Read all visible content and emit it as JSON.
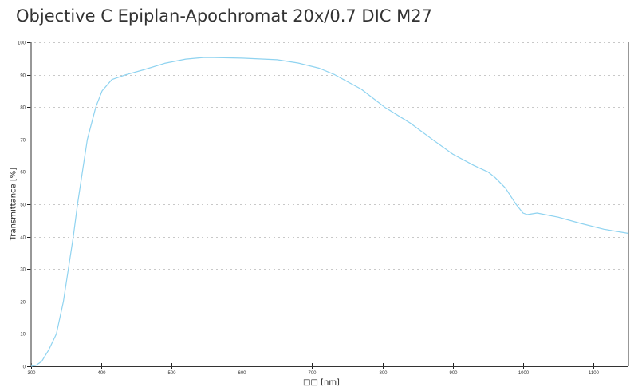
{
  "title": "Objective C Epiplan-Apochromat 20x/0.7 DIC M27",
  "chart_data": {
    "type": "line",
    "title": "Objective C Epiplan-Apochromat 20x/0.7 DIC M27",
    "xlabel": "□□ [nm]",
    "ylabel": "Transmittance [%]",
    "xlim": [
      300,
      1150
    ],
    "ylim": [
      0,
      100
    ],
    "x_ticks": [
      300,
      400,
      500,
      600,
      700,
      800,
      900,
      1000,
      1100
    ],
    "y_ticks": [
      0,
      10,
      20,
      30,
      40,
      50,
      60,
      70,
      80,
      90,
      100
    ],
    "grid": "horizontal dotted",
    "legend": "none",
    "series": [
      {
        "name": "Transmittance",
        "color": "#8fd3f0",
        "x": [
          300,
          307,
          315,
          325,
          336,
          346,
          353,
          360,
          366,
          373,
          380,
          392,
          401,
          415,
          435,
          460,
          490,
          520,
          545,
          560,
          600,
          650,
          680,
          710,
          732,
          770,
          803,
          840,
          871,
          900,
          930,
          950,
          960,
          975,
          990,
          1000,
          1006,
          1020,
          1050,
          1080,
          1115,
          1150
        ],
        "y": [
          0,
          0.3,
          1.5,
          5,
          10,
          20,
          30,
          40,
          50,
          60,
          70,
          80,
          85,
          88.5,
          90,
          91.5,
          93.5,
          94.8,
          95.3,
          95.3,
          95.1,
          94.6,
          93.6,
          92,
          90,
          85.5,
          80,
          75,
          70,
          65.5,
          62,
          60,
          58.3,
          55,
          50,
          47.3,
          46.8,
          47.3,
          46,
          44.2,
          42.3,
          41
        ]
      }
    ]
  }
}
